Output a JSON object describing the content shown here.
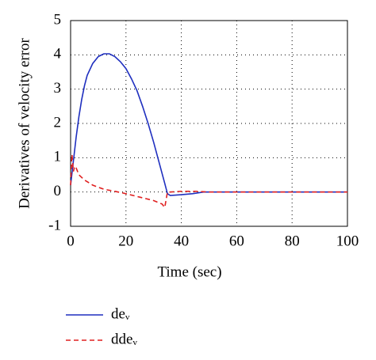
{
  "chart_data": {
    "type": "line",
    "x_label": "Time (sec)",
    "y_label": "Derivatives of velocity error",
    "xlim": [
      0,
      100
    ],
    "xticks": [
      0,
      20,
      40,
      60,
      80,
      100
    ],
    "ylim": [
      -1,
      5
    ],
    "yticks": [
      -1,
      0,
      1,
      2,
      3,
      4,
      5
    ],
    "grid": true,
    "series": [
      {
        "name": "deᵥ",
        "color": "#1f2fbf",
        "dash": "solid",
        "x": [
          0,
          1,
          2,
          3,
          4,
          5,
          6,
          8,
          10,
          12,
          14,
          16,
          18,
          20,
          22,
          24,
          26,
          28,
          30,
          32,
          34,
          35,
          36,
          40,
          44,
          48,
          100
        ],
        "values": [
          0.2,
          0.9,
          1.6,
          2.2,
          2.7,
          3.1,
          3.4,
          3.75,
          3.95,
          4.03,
          4.03,
          3.95,
          3.8,
          3.6,
          3.3,
          2.95,
          2.5,
          2.0,
          1.45,
          0.85,
          0.25,
          -0.05,
          -0.1,
          -0.08,
          -0.05,
          0,
          0
        ]
      },
      {
        "name": "ddeᵥ",
        "color": "#e02020",
        "dash": "dashed",
        "x": [
          0,
          0.5,
          1,
          1.5,
          2,
          3,
          5,
          8,
          12,
          16,
          20,
          25,
          30,
          33,
          34,
          35,
          36,
          40,
          45,
          50,
          100
        ],
        "values": [
          0.2,
          1.1,
          0.6,
          0.75,
          0.7,
          0.5,
          0.35,
          0.2,
          0.08,
          0.02,
          -0.05,
          -0.15,
          -0.25,
          -0.35,
          -0.45,
          0,
          0,
          0.02,
          0.02,
          0,
          0
        ]
      }
    ]
  }
}
